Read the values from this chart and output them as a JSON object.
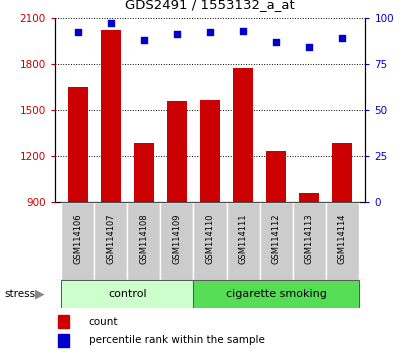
{
  "title": "GDS2491 / 1553132_a_at",
  "samples": [
    "GSM114106",
    "GSM114107",
    "GSM114108",
    "GSM114109",
    "GSM114110",
    "GSM114111",
    "GSM114112",
    "GSM114113",
    "GSM114114"
  ],
  "counts": [
    1650,
    2020,
    1280,
    1560,
    1565,
    1770,
    1230,
    960,
    1280
  ],
  "percentiles": [
    92,
    97,
    88,
    91,
    92,
    93,
    87,
    84,
    89
  ],
  "ylim_left": [
    900,
    2100
  ],
  "ylim_right": [
    0,
    100
  ],
  "yticks_left": [
    900,
    1200,
    1500,
    1800,
    2100
  ],
  "yticks_right": [
    0,
    25,
    50,
    75,
    100
  ],
  "bar_color": "#cc0000",
  "dot_color": "#0000cc",
  "control_color": "#ccffcc",
  "smoking_color": "#55dd55",
  "sample_box_color": "#cccccc",
  "control_label": "control",
  "smoking_label": "cigarette smoking",
  "stress_label": "stress",
  "legend_bar": "count",
  "legend_dot": "percentile rank within the sample",
  "tick_label_color_left": "#cc0000",
  "tick_label_color_right": "#0000cc",
  "bar_width": 0.6,
  "figsize": [
    4.2,
    3.54
  ],
  "dpi": 100,
  "n_control": 4,
  "n_smoking": 5
}
